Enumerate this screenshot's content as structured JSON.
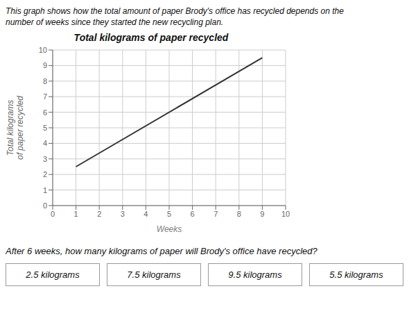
{
  "chart_data": {
    "type": "line",
    "title": "Total kilograms of paper recycled",
    "subtitle": [
      "This graph shows how the total amount of paper Brody's office has recycled depends on the",
      "number of weeks since they started the new recycling plan."
    ],
    "xlabel": "Weeks",
    "ylabel": "Total kilograms\nof paper recycled",
    "x": [
      1,
      9
    ],
    "values": [
      2.5,
      9.5
    ],
    "color": "#333333",
    "xlim": [
      0,
      10
    ],
    "ylim": [
      0,
      10
    ],
    "xticks": [
      0,
      1,
      2,
      3,
      4,
      5,
      6,
      7,
      8,
      9,
      10
    ],
    "yticks": [
      0,
      1,
      2,
      3,
      4,
      5,
      6,
      7,
      8,
      9,
      10
    ],
    "grid": true,
    "annotations": [
      "After 6 weeks, how many kilograms of paper will Brody's office have recycled?",
      "2.5 kilograms",
      "7.5 kilograms",
      "9.5 kilograms",
      "5.5 kilograms"
    ]
  }
}
